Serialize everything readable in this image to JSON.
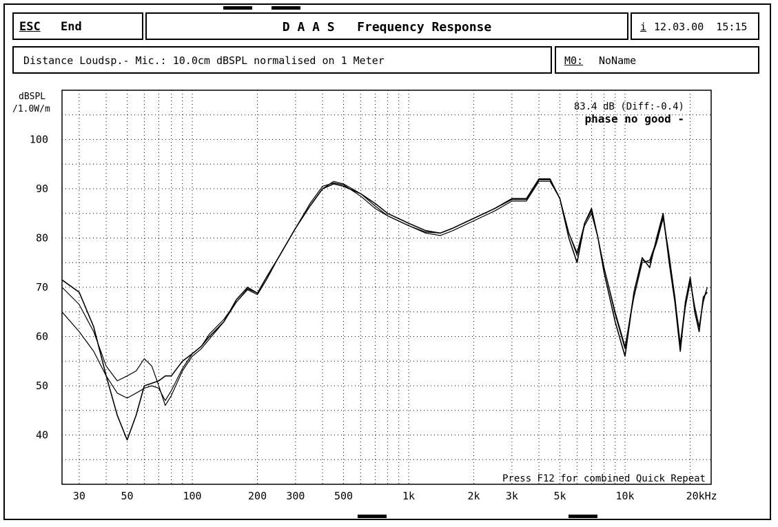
{
  "header": {
    "esc_key": "ESC",
    "end_label": "End",
    "title": "D A A S   Frequency Response",
    "info_key": "i",
    "datetime": "12.03.00  15:15"
  },
  "subheader": {
    "distance_info": "Distance Loudsp.- Mic.: 10.0cm dBSPL normalised on 1 Meter",
    "memory_key": "M0:",
    "memory_name": "NoName"
  },
  "chart_data": {
    "type": "line",
    "xscale": "log",
    "xlim": [
      25,
      25000
    ],
    "ylim": [
      30,
      110
    ],
    "ylabel": [
      "dBSPL",
      "/1.0W/m"
    ],
    "xunit": "kHz",
    "x_ticks": [
      {
        "value": 30,
        "label": "30"
      },
      {
        "value": 50,
        "label": "50"
      },
      {
        "value": 100,
        "label": "100"
      },
      {
        "value": 200,
        "label": "200"
      },
      {
        "value": 300,
        "label": "300"
      },
      {
        "value": 500,
        "label": "500"
      },
      {
        "value": 1000,
        "label": "1k"
      },
      {
        "value": 2000,
        "label": "2k"
      },
      {
        "value": 3000,
        "label": "3k"
      },
      {
        "value": 5000,
        "label": "5k"
      },
      {
        "value": 10000,
        "label": "10k"
      },
      {
        "value": 20000,
        "label": "20kHz"
      }
    ],
    "y_ticks": [
      40,
      50,
      60,
      70,
      80,
      90,
      100
    ],
    "grid": true,
    "annotations": {
      "level": "83.4 dB (Diff:-0.4)",
      "status": "phase no good -",
      "footer": "Press F12 for combined Quick Repeat"
    },
    "series": [
      {
        "x": [
          25,
          30,
          35,
          40,
          45,
          50,
          55,
          60,
          65,
          70,
          75,
          80,
          90,
          100,
          110,
          120,
          140,
          160,
          180,
          200,
          220,
          250,
          300,
          350,
          400,
          450,
          500,
          600,
          700,
          800,
          1000,
          1200,
          1400,
          1600,
          2000,
          2500,
          3000,
          3500,
          4000,
          4500,
          5000,
          5500,
          6000,
          6500,
          7000,
          7500,
          8000,
          9000,
          10000,
          11000,
          12000,
          13000,
          14000,
          15000,
          16000,
          17000,
          18000,
          19000,
          20000,
          21000,
          22000,
          23000,
          24000
        ],
        "y": [
          71.5,
          69,
          62,
          52,
          44,
          39,
          44,
          50,
          50.5,
          51,
          52,
          52,
          55,
          56.5,
          58,
          60,
          63,
          67.5,
          70,
          68.8,
          72,
          76,
          82,
          86.5,
          90,
          91,
          90.5,
          89,
          87,
          85,
          83,
          81.5,
          81,
          82,
          84,
          86,
          88,
          88,
          92,
          92,
          88,
          80,
          75,
          83,
          86,
          80,
          73,
          63,
          56,
          69,
          76,
          74,
          80,
          85,
          75,
          67,
          57,
          67,
          72,
          65,
          61,
          68,
          69
        ]
      },
      {
        "x": [
          25,
          30,
          35,
          40,
          45,
          50,
          55,
          60,
          65,
          70,
          75,
          80,
          90,
          100,
          110,
          120,
          140,
          160,
          180,
          200,
          220,
          250,
          300,
          350,
          400,
          450,
          500,
          600,
          700,
          800,
          1000,
          1200,
          1400,
          1600,
          2000,
          2500,
          3000,
          3500,
          4000,
          4500,
          5000,
          5500,
          6000,
          6500,
          7000,
          7500,
          8000,
          9000,
          10000,
          11000,
          12000,
          13000,
          14000,
          15000,
          16000,
          17000,
          18000,
          19000,
          20000,
          21000,
          22000,
          23000,
          24000
        ],
        "y": [
          70,
          66.5,
          61,
          54,
          51,
          52,
          53,
          55.5,
          54,
          50,
          46,
          48,
          53,
          56,
          57.5,
          59.5,
          63,
          67,
          69.5,
          68.5,
          71.5,
          76,
          82,
          86.5,
          90,
          91.5,
          91,
          89,
          86.5,
          84.5,
          82.5,
          81,
          80.5,
          81.5,
          83.5,
          85.5,
          87.5,
          87.5,
          91.5,
          91.5,
          88,
          81,
          76.5,
          82.5,
          85,
          80,
          74,
          64.5,
          57.5,
          69,
          75.5,
          75,
          79,
          84,
          76,
          68,
          58,
          66,
          71,
          66,
          62,
          67,
          70
        ]
      },
      {
        "x": [
          25,
          30,
          35,
          40,
          45,
          50,
          55,
          60,
          65,
          70,
          75,
          80,
          90,
          100,
          110,
          120,
          140,
          160,
          180,
          200,
          220,
          250,
          300,
          350,
          400,
          450,
          500,
          600,
          700,
          800,
          1000,
          1200,
          1400,
          1600,
          2000,
          2500,
          3000,
          3500,
          4000,
          4500,
          5000,
          5500,
          6000,
          6500,
          7000,
          7500,
          8000,
          9000,
          10000,
          11000,
          12000,
          13000,
          14000,
          15000,
          16000,
          17000,
          18000,
          19000,
          20000,
          21000,
          22000,
          23000,
          24000
        ],
        "y": [
          65,
          61,
          57,
          52,
          48.5,
          47.5,
          48.5,
          49.5,
          50,
          49.5,
          47,
          49,
          53.5,
          56.5,
          58,
          60.5,
          63.5,
          67,
          69.7,
          68.8,
          72,
          76,
          82,
          87,
          90.5,
          91.2,
          90.8,
          88.5,
          86,
          84.5,
          82.5,
          81.2,
          81,
          82,
          84,
          86,
          87.8,
          87.8,
          91.8,
          91.8,
          88,
          81,
          77,
          83,
          85.5,
          80,
          74,
          65,
          58,
          68,
          75,
          75.5,
          79.5,
          84.5,
          76.5,
          68,
          58.5,
          67,
          71.5,
          66,
          62,
          67.5,
          70
        ]
      }
    ]
  }
}
